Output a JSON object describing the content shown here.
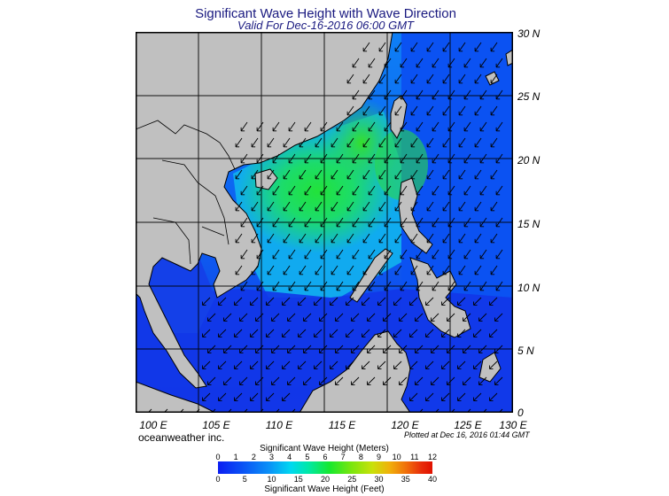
{
  "header": {
    "title": "Significant Wave Height with Wave Direction",
    "subtitle": "Valid For Dec-16-2016 06:00 GMT"
  },
  "map": {
    "region": "South China Sea",
    "lon_range": [
      100,
      130
    ],
    "lat_range": [
      0,
      30
    ],
    "land_color": "#c0c0c0",
    "grid_lines": true,
    "lat_labels": [
      "30 N",
      "25 N",
      "20 N",
      "15 N",
      "10 N",
      "5 N",
      "0"
    ],
    "lon_labels": [
      "100 E",
      "105 E",
      "110 E",
      "115 E",
      "120 E",
      "125 E",
      "130 E"
    ],
    "arrow_direction": "northeast wind-wave arrows pointing southwest"
  },
  "footer": {
    "credit": "oceanweather inc.",
    "plotted": "Plotted at Dec 16, 2016 01:44 GMT"
  },
  "colorbar": {
    "meters_title": "Significant Wave Height (Meters)",
    "meters_ticks": [
      "0",
      "1",
      "2",
      "3",
      "4",
      "5",
      "6",
      "7",
      "8",
      "9",
      "10",
      "11",
      "12"
    ],
    "feet_title": "Significant Wave Height (Feet)",
    "feet_ticks": [
      "0",
      "5",
      "10",
      "15",
      "20",
      "25",
      "30",
      "35",
      "40"
    ],
    "colors": [
      "#0b1ef2",
      "#0a92f7",
      "#00d8f0",
      "#16e82f",
      "#c9e10a",
      "#f06d0a",
      "#e01000"
    ]
  }
}
